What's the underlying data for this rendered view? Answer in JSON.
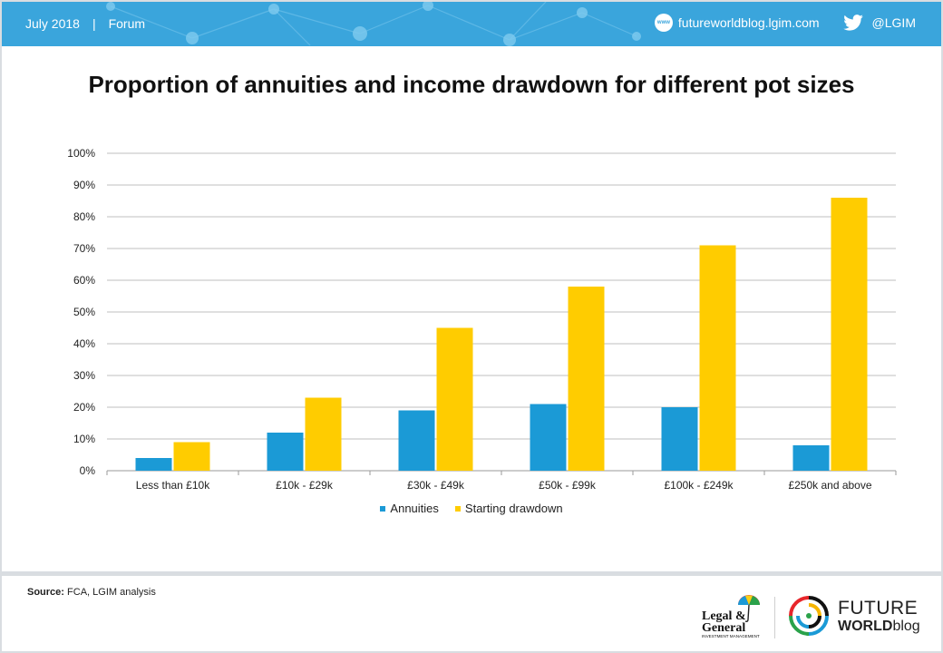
{
  "header": {
    "date": "July 2018",
    "separator": "|",
    "section": "Forum",
    "website_icon_label": "www",
    "website": "futureworldblog.lgim.com",
    "twitter_handle": "@LGIM",
    "bar_color": "#3aa5dc"
  },
  "chart_data": {
    "type": "bar",
    "title": "Proportion of annuities and income drawdown for different pot sizes",
    "categories": [
      "Less than £10k",
      "£10k - £29k",
      "£30k - £49k",
      "£50k - £99k",
      "£100k - £249k",
      "£250k and above"
    ],
    "series": [
      {
        "name": "Annuities",
        "color": "#1b9ad6",
        "values": [
          4,
          12,
          19,
          21,
          20,
          8
        ]
      },
      {
        "name": "Starting drawdown",
        "color": "#ffcc00",
        "values": [
          9,
          23,
          45,
          58,
          71,
          86
        ]
      }
    ],
    "ylim": [
      0,
      100
    ],
    "yticks": [
      0,
      10,
      20,
      30,
      40,
      50,
      60,
      70,
      80,
      90,
      100
    ],
    "ytick_labels": [
      "0%",
      "10%",
      "20%",
      "30%",
      "40%",
      "50%",
      "60%",
      "70%",
      "80%",
      "90%",
      "100%"
    ],
    "grid": true,
    "legend_position": "bottom-center"
  },
  "footer": {
    "source_label": "Source:",
    "source_text": "FCA, LGIM analysis",
    "lg_logo": {
      "line1": "Legal &",
      "line2": "General",
      "line3": "INVESTMENT MANAGEMENT"
    },
    "fw_logo": {
      "line1": "FUTURE",
      "line2_bold": "WORLD",
      "line2_light": "blog"
    }
  }
}
